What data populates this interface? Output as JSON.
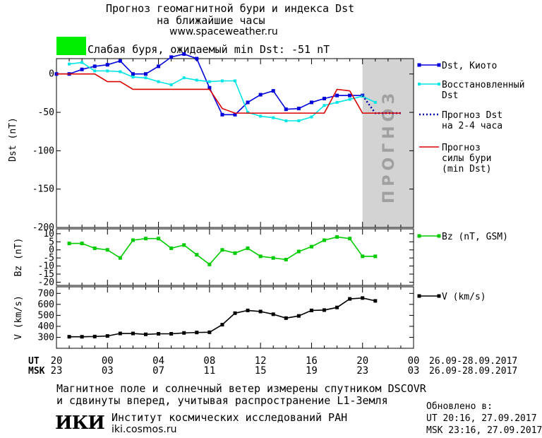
{
  "header": {
    "title_line1": "Прогноз геомагнитной бури и индекса Dst",
    "title_line2": "на ближайшие часы",
    "url": "www.spaceweather.ru",
    "storm_color": "#00ee00",
    "storm_text": "Слабая буря, ожидаемый min Dst: -51 nT"
  },
  "chart_data": [
    {
      "type": "line",
      "ylabel": "Dst (nT)",
      "ylim": [
        -200,
        20
      ],
      "yticks": [
        "0",
        "-50",
        "-100",
        "-150",
        "-200"
      ],
      "ytick_values": [
        0,
        -50,
        -100,
        -150,
        -200
      ],
      "xlim": [
        20,
        48
      ],
      "forecast_band": {
        "from": 44,
        "to": 48.5,
        "label": "ПРОГНОЗ",
        "color": "#d3d3d3"
      },
      "series": [
        {
          "name": "Dst, Киото",
          "color": "#0000dd",
          "x": [
            20,
            21,
            22,
            23,
            24,
            25,
            26,
            27,
            28,
            29,
            30,
            31,
            32,
            33,
            34,
            35,
            36,
            37,
            38,
            39,
            40,
            41,
            42,
            43,
            44
          ],
          "y": [
            0,
            0,
            6,
            10,
            12,
            17,
            0,
            0,
            10,
            22,
            26,
            20,
            -18,
            -53,
            -53,
            -37,
            -27,
            -22,
            -46,
            -45,
            -37,
            -32,
            -28,
            -28,
            -28
          ]
        },
        {
          "name": "Восстановленный Dst",
          "color": "#00e5e5",
          "x": [
            21,
            22,
            23,
            24,
            25,
            26,
            27,
            28,
            29,
            30,
            31,
            32,
            33,
            34,
            35,
            36,
            37,
            38,
            39,
            40,
            41,
            42,
            43,
            44,
            45
          ],
          "y": [
            13,
            15,
            4,
            4,
            3,
            -4,
            -5,
            -10,
            -14,
            -5,
            -8,
            -10,
            -9,
            -9,
            -50,
            -55,
            -57,
            -61,
            -61,
            -56,
            -41,
            -37,
            -33,
            -29,
            -37
          ]
        },
        {
          "name": "Прогноз Dst на 2-4 часа",
          "color": "#0000aa",
          "dashed": true,
          "x": [
            44,
            45,
            46,
            47
          ],
          "y": [
            -28,
            -51,
            -51,
            -51
          ]
        },
        {
          "name": "Прогноз силы бури (min Dst)",
          "color": "#dd0000",
          "x": [
            20,
            23,
            24,
            25,
            26,
            27,
            28,
            29,
            30,
            31,
            32,
            33,
            34,
            35,
            36,
            37,
            38,
            39,
            40,
            41,
            42,
            43,
            44,
            47
          ],
          "y": [
            0,
            0,
            -10,
            -10,
            -20,
            -20,
            -20,
            -20,
            -20,
            -20,
            -20,
            -45,
            -51,
            -51,
            -51,
            -51,
            -51,
            -51,
            -51,
            -51,
            -20,
            -22,
            -51,
            -51
          ]
        }
      ],
      "legend": [
        "Dst, Киото",
        "Восстановленный Dst",
        "Прогноз Dst на 2-4 часа",
        "Прогноз силы бури (min Dst)"
      ]
    },
    {
      "type": "line",
      "ylabel": "Bz (nT)",
      "ylim": [
        -22,
        13
      ],
      "yticks": [
        "10",
        "5",
        "0",
        "-5",
        "-10",
        "-15",
        "-20"
      ],
      "ytick_values": [
        10,
        5,
        0,
        -5,
        -10,
        -15,
        -20
      ],
      "series": [
        {
          "name": "Bz (nT, GSM)",
          "color": "#00cc00",
          "x": [
            21,
            22,
            23,
            24,
            25,
            26,
            27,
            28,
            29,
            30,
            31,
            32,
            33,
            34,
            35,
            36,
            37,
            38,
            39,
            40,
            41,
            42,
            43,
            44,
            45
          ],
          "y": [
            4,
            4,
            1,
            0,
            -5,
            6,
            7,
            7,
            1,
            3,
            -3,
            -9,
            0,
            -2,
            1,
            -4,
            -5,
            -6,
            -1,
            2,
            6,
            8,
            7,
            -4,
            -4
          ]
        }
      ]
    },
    {
      "type": "line",
      "ylabel": "V (km/s)",
      "ylim": [
        200,
        760
      ],
      "yticks": [
        "700",
        "600",
        "500",
        "400",
        "300"
      ],
      "ytick_values": [
        700,
        600,
        500,
        400,
        300
      ],
      "series": [
        {
          "name": "V (km/s)",
          "color": "#000000",
          "x": [
            21,
            22,
            23,
            24,
            25,
            26,
            27,
            28,
            29,
            30,
            31,
            32,
            33,
            34,
            35,
            36,
            37,
            38,
            39,
            40,
            41,
            42,
            43,
            44,
            45
          ],
          "y": [
            305,
            305,
            307,
            312,
            335,
            335,
            327,
            332,
            332,
            340,
            344,
            346,
            415,
            520,
            545,
            535,
            510,
            475,
            495,
            545,
            548,
            572,
            650,
            658,
            632
          ]
        }
      ]
    }
  ],
  "x_axis": {
    "ut_label": "UT",
    "msk_label": "MSK",
    "ut_ticks": [
      "20",
      "00",
      "04",
      "08",
      "12",
      "16",
      "20",
      "00"
    ],
    "msk_ticks": [
      "23",
      "03",
      "07",
      "11",
      "15",
      "19",
      "23",
      "03"
    ],
    "tick_values": [
      20,
      24,
      28,
      32,
      36,
      40,
      44,
      48
    ],
    "ut_range": "26.09-28.09.2017",
    "msk_range": "26.09-28.09.2017"
  },
  "footer": {
    "line1": "Магнитное поле и солнечный ветер измерены спутником DSCOVR",
    "line2": "и сдвинуты вперед, учитывая распространение L1-Земля",
    "updated_label": "Обновлено в:",
    "updated_ut": "UT  20:16, 27.09.2017",
    "updated_msk": "MSK 23:16, 27.09.2017",
    "logo_text": "ИКИ",
    "institute": "Институт космических исследований РАН",
    "institute_url": "iki.cosmos.ru"
  }
}
